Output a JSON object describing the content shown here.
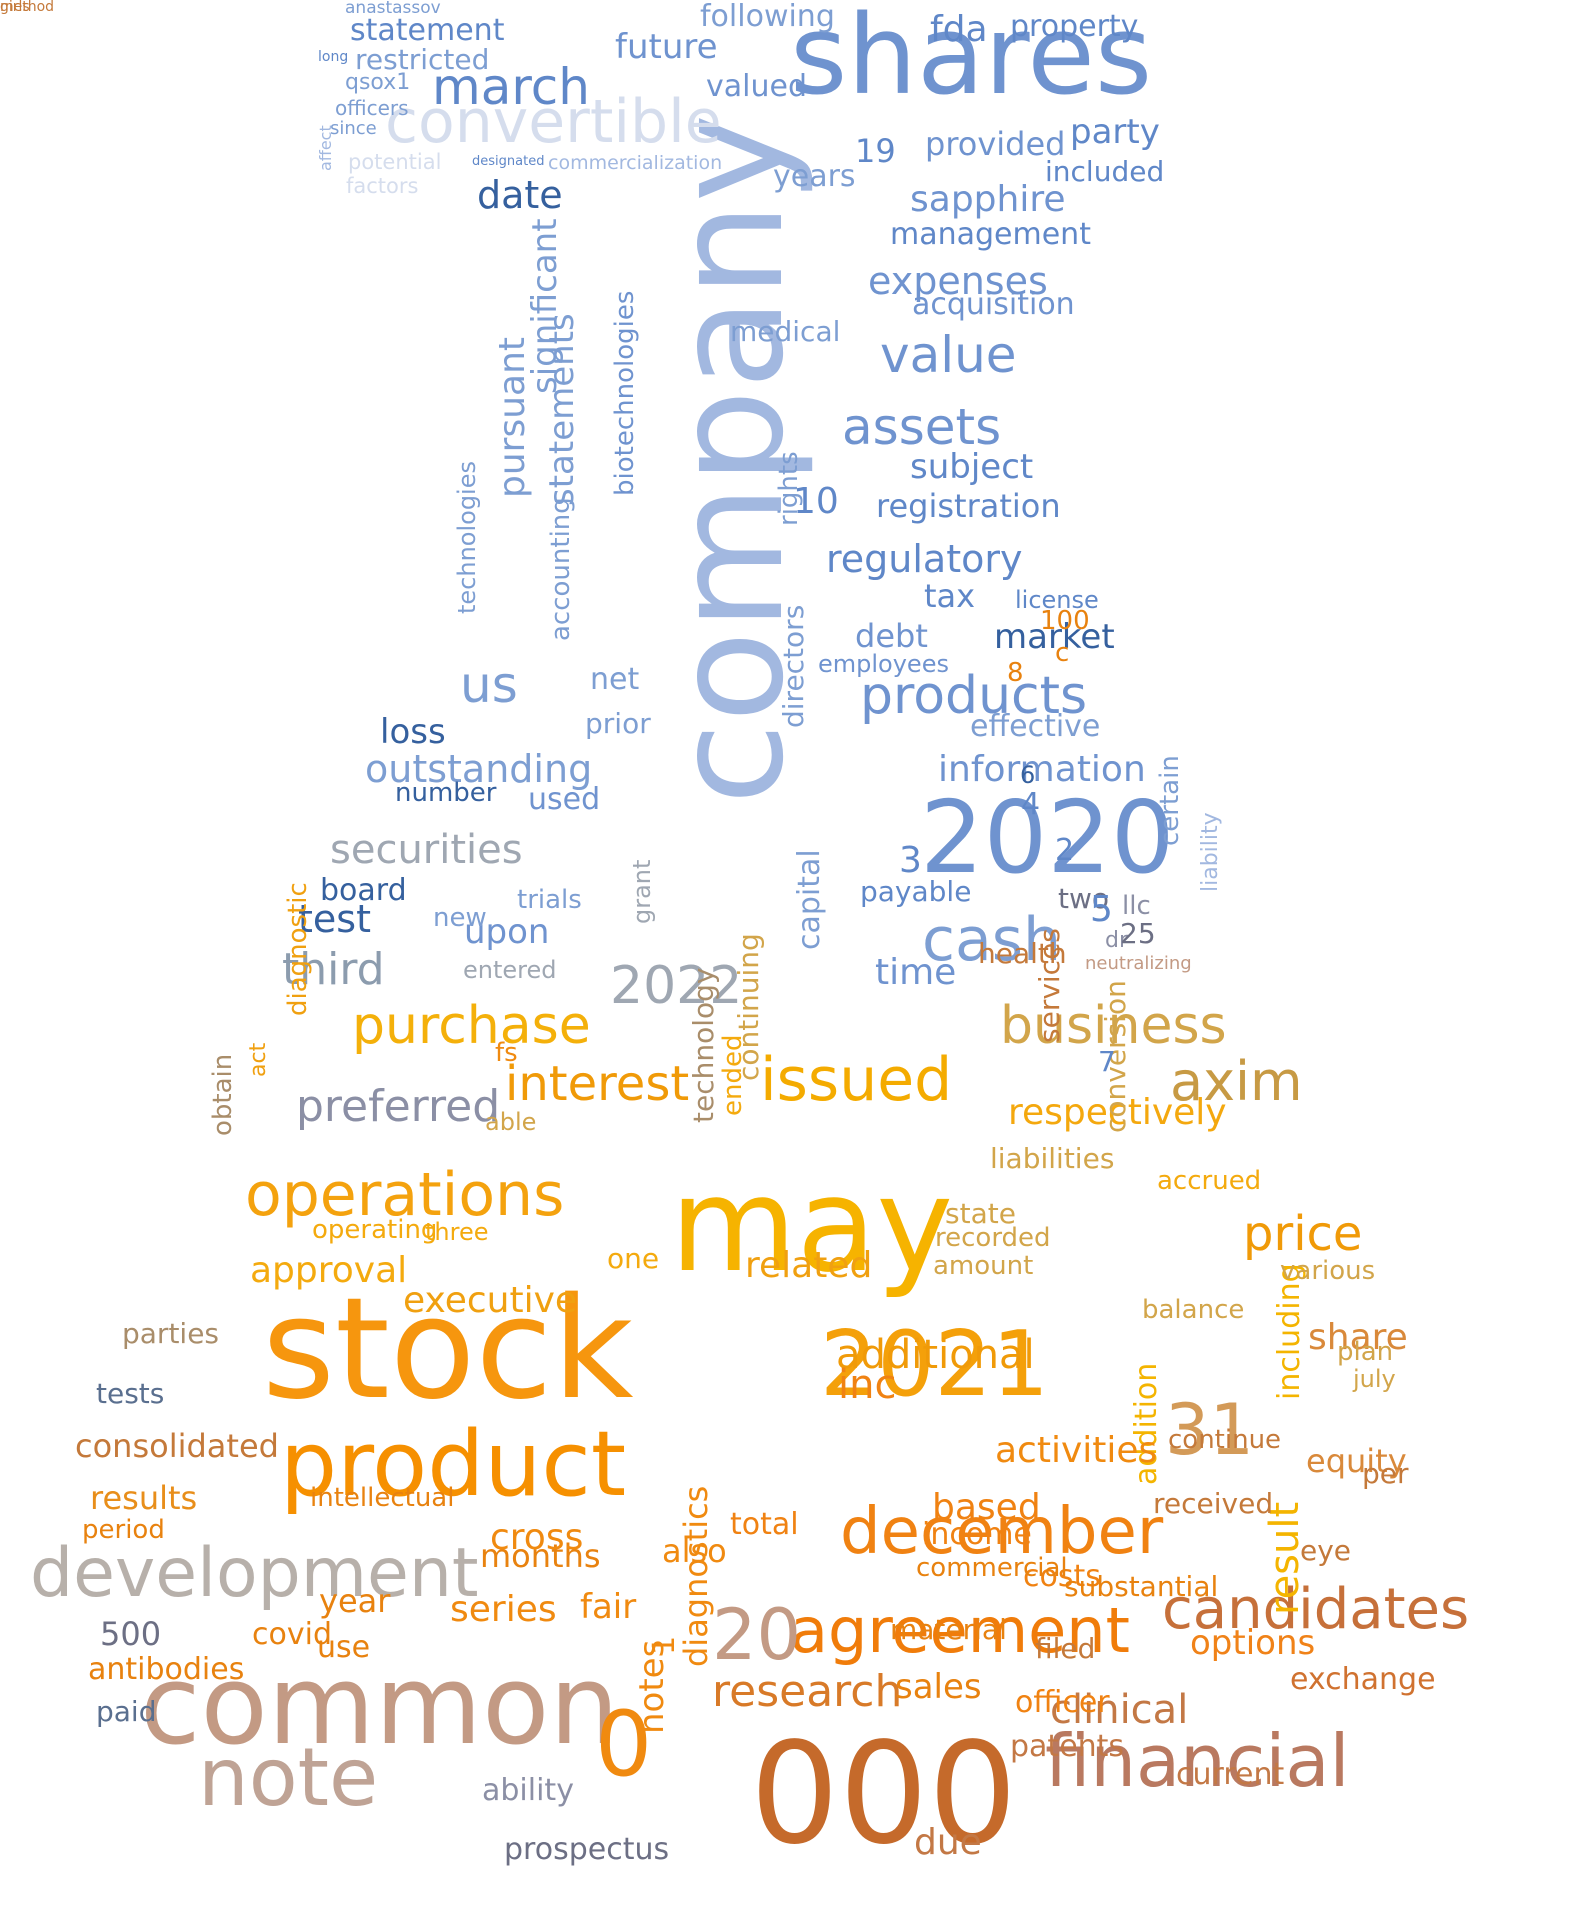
{
  "words": [
    {
      "t": "company",
      "c": "#a2b8e0"
    },
    {
      "t": "shares",
      "c": "#6f93cf"
    },
    {
      "t": "convertible",
      "c": "#d5dded"
    },
    {
      "t": "march",
      "c": "#5f87c8"
    },
    {
      "t": "statement",
      "c": "#5f87c8"
    },
    {
      "t": "restricted",
      "c": "#7d9ed2"
    },
    {
      "t": "qsox1",
      "c": "#7d9ed2"
    },
    {
      "t": "officers",
      "c": "#7d9ed2"
    },
    {
      "t": "since",
      "c": "#7d9ed2"
    },
    {
      "t": "affect",
      "c": "#a2b8e0"
    },
    {
      "t": "long",
      "c": "#5f87c8"
    },
    {
      "t": "anastassov",
      "c": "#7d9ed2"
    },
    {
      "t": "potential",
      "c": "#d5dded"
    },
    {
      "t": "factors",
      "c": "#d5dded"
    },
    {
      "t": "designated",
      "c": "#5f87c8"
    },
    {
      "t": "commercialization",
      "c": "#a2b8e0"
    },
    {
      "t": "fda",
      "c": "#5f87c8"
    },
    {
      "t": "property",
      "c": "#5f87c8"
    },
    {
      "t": "following",
      "c": "#7d9ed2"
    },
    {
      "t": "future",
      "c": "#6f93cf"
    },
    {
      "t": "valued",
      "c": "#6f93cf"
    },
    {
      "t": "party",
      "c": "#5f87c8"
    },
    {
      "t": "provided",
      "c": "#6f93cf"
    },
    {
      "t": "included",
      "c": "#5f87c8"
    },
    {
      "t": "19",
      "c": "#5f87c8"
    },
    {
      "t": "date",
      "c": "#35609e"
    },
    {
      "t": "years",
      "c": "#7d9ed2"
    },
    {
      "t": "sapphire",
      "c": "#6f93cf"
    },
    {
      "t": "management",
      "c": "#5f87c8"
    },
    {
      "t": "expenses",
      "c": "#6f93cf"
    },
    {
      "t": "acquisition",
      "c": "#6f93cf"
    },
    {
      "t": "medical",
      "c": "#7d9ed2"
    },
    {
      "t": "value",
      "c": "#6f93cf"
    },
    {
      "t": "assets",
      "c": "#6f93cf"
    },
    {
      "t": "subject",
      "c": "#5f87c8"
    },
    {
      "t": "registration",
      "c": "#5f87c8"
    },
    {
      "t": "10",
      "c": "#5f87c8"
    },
    {
      "t": "regulatory",
      "c": "#5f87c8"
    },
    {
      "t": "tax",
      "c": "#5f87c8"
    },
    {
      "t": "license",
      "c": "#5f87c8"
    },
    {
      "t": "market",
      "c": "#35609e"
    },
    {
      "t": "debt",
      "c": "#6f93cf"
    },
    {
      "t": "employees",
      "c": "#6f93cf"
    },
    {
      "t": "products",
      "c": "#6f93cf"
    },
    {
      "t": "effective",
      "c": "#7d9ed2"
    },
    {
      "t": "information",
      "c": "#6f93cf"
    },
    {
      "t": "2020",
      "c": "#6f93cf"
    },
    {
      "t": "outstanding",
      "c": "#7d9ed2"
    },
    {
      "t": "loss",
      "c": "#35609e"
    },
    {
      "t": "securities",
      "c": "#9fa7b2"
    },
    {
      "t": "number",
      "c": "#35609e"
    },
    {
      "t": "used",
      "c": "#6f93cf"
    },
    {
      "t": "board",
      "c": "#35609e"
    },
    {
      "t": "test",
      "c": "#35609e"
    },
    {
      "t": "third",
      "c": "#8c9cae"
    },
    {
      "t": "cash",
      "c": "#7d9ed2"
    },
    {
      "t": "significant",
      "c": "#7d9ed2"
    },
    {
      "t": "statements",
      "c": "#7d9ed2"
    },
    {
      "t": "biotechnologies",
      "c": "#6f93cf"
    },
    {
      "t": "pursuant",
      "c": "#7d9ed2"
    },
    {
      "t": "accounting",
      "c": "#7d9ed2"
    },
    {
      "t": "technologies",
      "c": "#7d9ed2"
    },
    {
      "t": "us",
      "c": "#7d9ed2"
    },
    {
      "t": "net",
      "c": "#7d9ed2"
    },
    {
      "t": "prior",
      "c": "#7d9ed2"
    },
    {
      "t": "directors",
      "c": "#7d9ed2"
    },
    {
      "t": "rights",
      "c": "#7d9ed2"
    },
    {
      "t": "grant",
      "c": "#9fa7b2"
    },
    {
      "t": "capital",
      "c": "#7d9ed2"
    },
    {
      "t": "2022",
      "c": "#9fa7b2"
    },
    {
      "t": "certain",
      "c": "#7d9ed2"
    },
    {
      "t": "liability",
      "c": "#a2b8e0"
    },
    {
      "t": "payable",
      "c": "#5f87c8"
    },
    {
      "t": "time",
      "c": "#6f93cf"
    },
    {
      "t": "upon",
      "c": "#6f93cf"
    },
    {
      "t": "trials",
      "c": "#7d9ed2"
    },
    {
      "t": "new",
      "c": "#7d9ed2"
    },
    {
      "t": "entered",
      "c": "#9fa7b2"
    },
    {
      "t": "stock",
      "c": "#f6960e"
    },
    {
      "t": "may",
      "c": "#f6b300"
    },
    {
      "t": "common",
      "c": "#c39a84"
    },
    {
      "t": "product",
      "c": "#f69000"
    },
    {
      "t": "development",
      "c": "#b7b0aa"
    },
    {
      "t": "note",
      "c": "#bfa395"
    },
    {
      "t": "000",
      "c": "#c56a2b"
    },
    {
      "t": "financial",
      "c": "#b97960"
    },
    {
      "t": "december",
      "c": "#f08212"
    },
    {
      "t": "agreement",
      "c": "#f07c0a"
    },
    {
      "t": "candidates",
      "c": "#c6703a"
    },
    {
      "t": "2021",
      "c": "#f4a00a"
    },
    {
      "t": "31",
      "c": "#d39a58"
    },
    {
      "t": "operations",
      "c": "#f4a20e"
    },
    {
      "t": "issued",
      "c": "#f4ab00"
    },
    {
      "t": "purchase",
      "c": "#f4b00a"
    },
    {
      "t": "business",
      "c": "#d2a54a"
    },
    {
      "t": "axim",
      "c": "#c79a44"
    },
    {
      "t": "interest",
      "c": "#f09a08"
    },
    {
      "t": "price",
      "c": "#f09a08"
    },
    {
      "t": "respectively",
      "c": "#f4a80e"
    },
    {
      "t": "preferred",
      "c": "#8b8fa5"
    },
    {
      "t": "research",
      "c": "#d87a28"
    },
    {
      "t": "clinical",
      "c": "#c37845"
    },
    {
      "t": "exchange",
      "c": "#d07230"
    },
    {
      "t": "options",
      "c": "#f08218"
    },
    {
      "t": "share",
      "c": "#d9893a"
    },
    {
      "t": "equity",
      "c": "#d9893a"
    },
    {
      "t": "including",
      "c": "#f4b400"
    },
    {
      "t": "result",
      "c": "#f4b400"
    },
    {
      "t": "addition",
      "c": "#f4b400"
    },
    {
      "t": "results",
      "c": "#e88e1a"
    },
    {
      "t": "consolidated",
      "c": "#c4793a"
    },
    {
      "t": "tests",
      "c": "#5a6f8f"
    },
    {
      "t": "parties",
      "c": "#a98d6a"
    },
    {
      "t": "approval",
      "c": "#f4aa0e"
    },
    {
      "t": "executive",
      "c": "#f0a010"
    },
    {
      "t": "related",
      "c": "#f0a010"
    },
    {
      "t": "additional",
      "c": "#f09a08"
    },
    {
      "t": "activities",
      "c": "#f08a10"
    },
    {
      "t": "months",
      "c": "#e8820f"
    },
    {
      "t": "series",
      "c": "#f08a10"
    },
    {
      "t": "cross",
      "c": "#f08a10"
    },
    {
      "t": "fair",
      "c": "#f08a10"
    },
    {
      "t": "also",
      "c": "#f08a10"
    },
    {
      "t": "ability",
      "c": "#8b8fa5"
    },
    {
      "t": "prospectus",
      "c": "#6c6f84"
    },
    {
      "t": "due",
      "c": "#c37845"
    },
    {
      "t": "inc",
      "c": "#f08212"
    },
    {
      "t": "based",
      "c": "#f08212"
    },
    {
      "t": "total",
      "c": "#f08212"
    },
    {
      "t": "income",
      "c": "#f08212"
    },
    {
      "t": "costs",
      "c": "#f08212"
    },
    {
      "t": "officer",
      "c": "#f08212"
    },
    {
      "t": "patents",
      "c": "#c37845"
    },
    {
      "t": "current",
      "c": "#c37845"
    },
    {
      "t": "500",
      "c": "#6c6f84"
    },
    {
      "t": "covid",
      "c": "#e8820f"
    },
    {
      "t": "use",
      "c": "#e8820f"
    },
    {
      "t": "year",
      "c": "#e8820f"
    },
    {
      "t": "intellectual",
      "c": "#e8820f"
    },
    {
      "t": "period",
      "c": "#e8820f"
    },
    {
      "t": "antibodies",
      "c": "#e8820f"
    },
    {
      "t": "paid",
      "c": "#5a6f8f"
    },
    {
      "t": "20",
      "c": "#c39a84"
    },
    {
      "t": "0",
      "c": "#f08a10"
    },
    {
      "t": "1",
      "c": "#f08a10"
    },
    {
      "t": "notes",
      "c": "#f08a10"
    },
    {
      "t": "diagnostics",
      "c": "#f08a10"
    },
    {
      "t": "fs",
      "c": "#f08a10"
    },
    {
      "t": "diagnostic",
      "c": "#f0a010"
    },
    {
      "t": "act",
      "c": "#f0a010"
    },
    {
      "t": "obtain",
      "c": "#a98d6a"
    },
    {
      "t": "technology",
      "c": "#a98d6a"
    },
    {
      "t": "ended",
      "c": "#f4aa0e"
    },
    {
      "t": "continuing",
      "c": "#d2a54a"
    },
    {
      "t": "able",
      "c": "#d2a54a"
    },
    {
      "t": "one",
      "c": "#f4aa0e"
    },
    {
      "t": "operating",
      "c": "#f4aa0e"
    },
    {
      "t": "three",
      "c": "#f4aa0e"
    },
    {
      "t": "accrued",
      "c": "#f4aa0e"
    },
    {
      "t": "conversion",
      "c": "#d2a54a"
    },
    {
      "t": "liabilities",
      "c": "#d2a54a"
    },
    {
      "t": "state",
      "c": "#d2a54a"
    },
    {
      "t": "recorded",
      "c": "#d2a54a"
    },
    {
      "t": "amount",
      "c": "#d2a54a"
    },
    {
      "t": "balance",
      "c": "#d2a54a"
    },
    {
      "t": "various",
      "c": "#d2a54a"
    },
    {
      "t": "plan",
      "c": "#d2a54a"
    },
    {
      "t": "july",
      "c": "#d2a54a"
    },
    {
      "t": "per",
      "c": "#c4793a"
    },
    {
      "t": "continue",
      "c": "#c4793a"
    },
    {
      "t": "received",
      "c": "#c4793a"
    },
    {
      "t": "eye",
      "c": "#c4793a"
    },
    {
      "t": "health",
      "c": "#c4793a"
    },
    {
      "t": "services",
      "c": "#c4793a"
    },
    {
      "t": "neutralizing",
      "c": "#c39a84"
    },
    {
      "t": "dr",
      "c": "#8b8fa5"
    },
    {
      "t": "llc",
      "c": "#8b8fa5"
    },
    {
      "t": "two",
      "c": "#6c6f84"
    },
    {
      "t": "25",
      "c": "#6c6f84"
    },
    {
      "t": "7",
      "c": "#5f87c8"
    },
    {
      "t": "2",
      "c": "#5f87c8"
    },
    {
      "t": "5",
      "c": "#5f87c8"
    },
    {
      "t": "3",
      "c": "#5f87c8"
    },
    {
      "t": "4",
      "c": "#5f87c8"
    },
    {
      "t": "6",
      "c": "#35609e"
    },
    {
      "t": "8",
      "c": "#e8820f"
    },
    {
      "t": "c",
      "c": "#e8820f"
    },
    {
      "t": "100",
      "c": "#e8820f"
    },
    {
      "t": "sales",
      "c": "#e8820f"
    },
    {
      "t": "material",
      "c": "#e8820f"
    },
    {
      "t": "commercial",
      "c": "#e8820f"
    },
    {
      "t": "substantial",
      "c": "#e8820f"
    },
    {
      "t": "filed",
      "c": "#c4793a"
    },
    {
      "t": "method",
      "c": "#c4793a"
    },
    {
      "t": "girls",
      "c": "#c4793a"
    }
  ]
}
